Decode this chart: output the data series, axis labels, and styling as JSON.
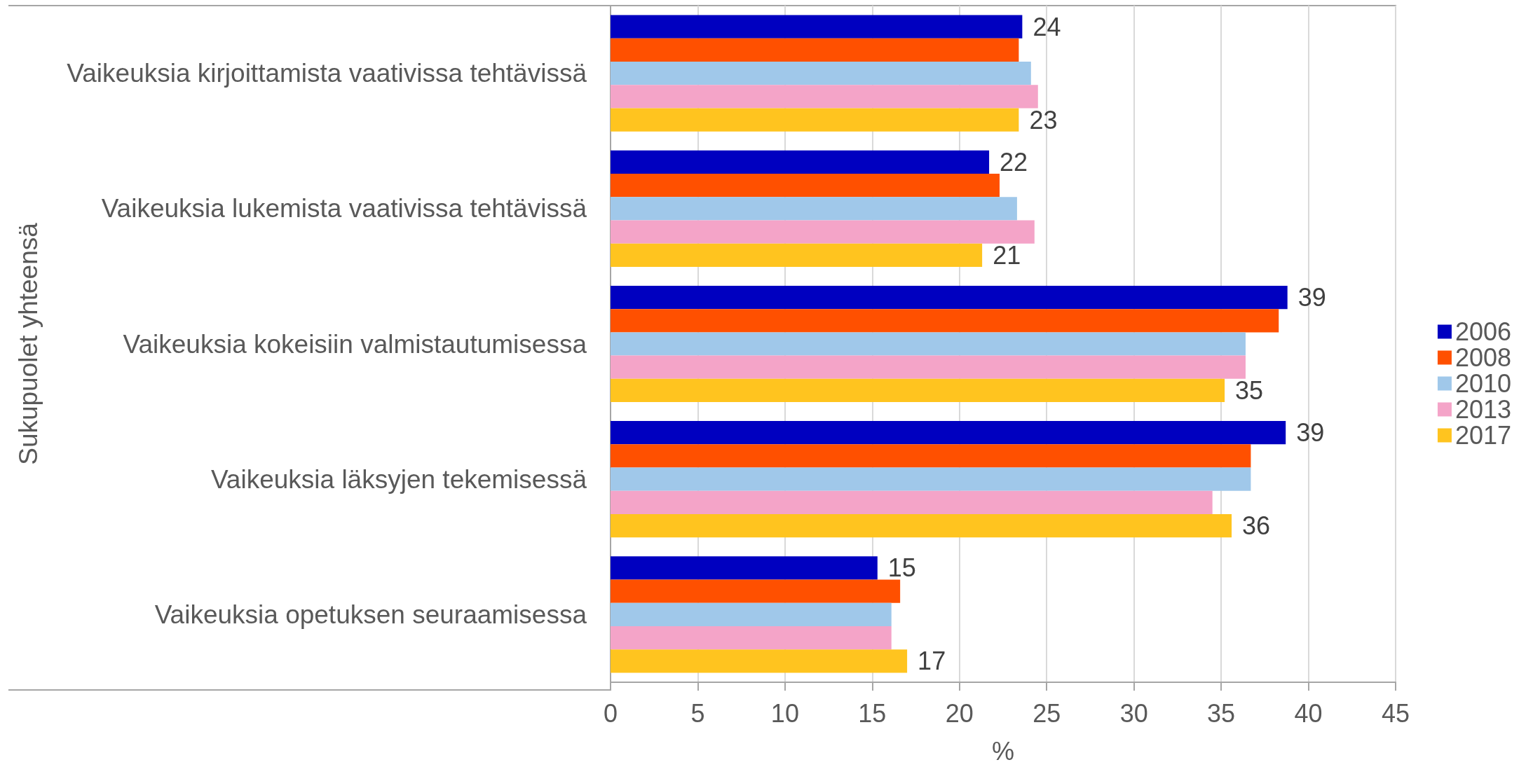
{
  "chart_data": {
    "type": "bar",
    "orientation": "horizontal",
    "xlabel": "%",
    "ylabel": "Sukupuolet yhteensä",
    "categories": [
      "Vaikeuksia kirjoittamista vaativissa tehtävissä",
      "Vaikeuksia lukemista vaativissa tehtävissä",
      "Vaikeuksia kokeisiin valmistautumisessa",
      "Vaikeuksia läksyjen tekemisessä",
      "Vaikeuksia opetuksen seuraamisessa"
    ],
    "series": [
      {
        "name": "2006",
        "color": "#0000c0",
        "values": [
          23.6,
          21.7,
          38.8,
          38.7,
          15.3
        ],
        "value_labels": [
          "24",
          "22",
          "39",
          "39",
          "15"
        ]
      },
      {
        "name": "2008",
        "color": "#ff5000",
        "values": [
          23.4,
          22.3,
          38.3,
          36.7,
          16.6
        ]
      },
      {
        "name": "2010",
        "color": "#a0c8ea",
        "values": [
          24.1,
          23.3,
          36.4,
          36.7,
          16.1
        ]
      },
      {
        "name": "2013",
        "color": "#f4a4c8",
        "values": [
          24.5,
          24.3,
          36.4,
          34.5,
          16.1
        ]
      },
      {
        "name": "2017",
        "color": "#ffc41f",
        "values": [
          23.4,
          21.3,
          35.2,
          35.6,
          17.0
        ],
        "value_labels": [
          "23",
          "21",
          "35",
          "36",
          "17"
        ]
      }
    ],
    "xlim": [
      0,
      45
    ],
    "xticks": [
      0,
      5,
      10,
      15,
      20,
      25,
      30,
      35,
      40,
      45
    ],
    "grid": "x",
    "legend": "right"
  }
}
